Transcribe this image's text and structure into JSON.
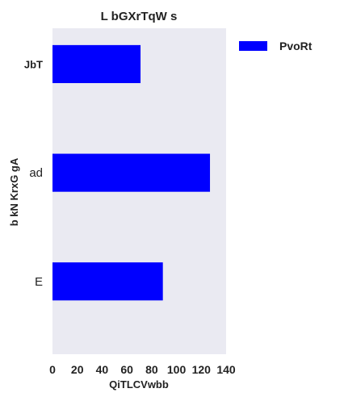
{
  "chart_data": {
    "type": "bar",
    "orientation": "horizontal",
    "title": "L bGXrTqW s",
    "xlabel": "QiTLCVwbb",
    "ylabel": "b kN KrxG gA",
    "categories": [
      "JbT",
      "ad",
      "E"
    ],
    "category_label_bold": [
      true,
      false,
      false
    ],
    "series": [
      {
        "name": "PvoRt",
        "values": [
          71,
          127,
          89
        ]
      }
    ],
    "xlim": [
      0,
      140
    ],
    "xticks": [
      0,
      20,
      40,
      60,
      80,
      100,
      120,
      140
    ],
    "grid": false,
    "legend_position": "top-right, outside plot",
    "colors": {
      "bar": "#0000ff",
      "plot_background": "#eaeaf2"
    }
  }
}
